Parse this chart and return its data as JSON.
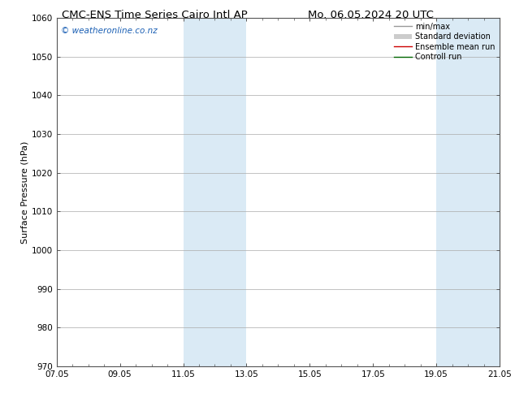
{
  "title_left": "CMC-ENS Time Series Cairo Intl AP",
  "title_right": "Mo. 06.05.2024 20 UTC",
  "ylabel": "Surface Pressure (hPa)",
  "xlim": [
    0,
    14
  ],
  "ylim": [
    970,
    1060
  ],
  "yticks": [
    970,
    980,
    990,
    1000,
    1010,
    1020,
    1030,
    1040,
    1050,
    1060
  ],
  "xtick_labels": [
    "07.05",
    "09.05",
    "11.05",
    "13.05",
    "15.05",
    "17.05",
    "19.05",
    "21.05"
  ],
  "xtick_positions": [
    0,
    2,
    4,
    6,
    8,
    10,
    12,
    14
  ],
  "shaded_bands": [
    {
      "x_start": 4,
      "x_end": 6
    },
    {
      "x_start": 12,
      "x_end": 14
    }
  ],
  "shaded_color": "#daeaf5",
  "watermark": "© weatheronline.co.nz",
  "watermark_color": "#1a5fb4",
  "legend_entries": [
    {
      "label": "min/max",
      "color": "#999999",
      "linewidth": 1.0
    },
    {
      "label": "Standard deviation",
      "color": "#cccccc",
      "linewidth": 6
    },
    {
      "label": "Ensemble mean run",
      "color": "#cc0000",
      "linewidth": 1.0
    },
    {
      "label": "Controll run",
      "color": "#006600",
      "linewidth": 1.0
    }
  ],
  "bg_color": "#ffffff",
  "grid_color": "#aaaaaa",
  "title_fontsize": 9.5,
  "ylabel_fontsize": 8,
  "tick_fontsize": 7.5,
  "legend_fontsize": 7,
  "watermark_fontsize": 7.5
}
